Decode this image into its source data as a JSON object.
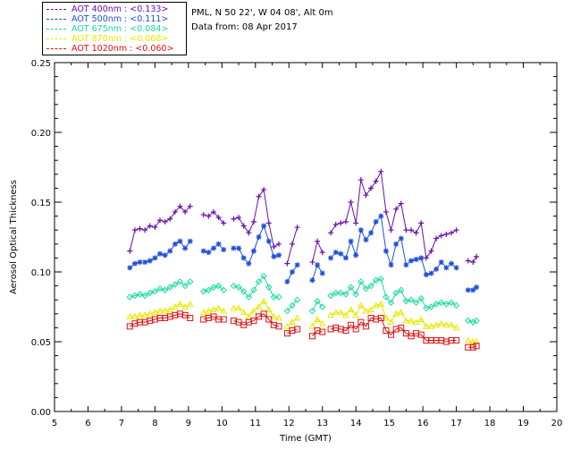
{
  "header": {
    "site_line": "PML, N 50 22', W 04 08', Alt 0m",
    "date_line": "Data from: 08 Apr 2017"
  },
  "legend": [
    {
      "label": "AOT  400nm : <0.133>",
      "color": "#6a0dad"
    },
    {
      "label": "AOT  500nm : <0.111>",
      "color": "#1f4fd8"
    },
    {
      "label": "AOT  675nm : <0.084>",
      "color": "#19d9a0"
    },
    {
      "label": "AOT  870nm : <0.068>",
      "color": "#e8e800"
    },
    {
      "label": "AOT 1020nm : <0.060>",
      "color": "#dd1111"
    }
  ],
  "chart_data": {
    "type": "scatter",
    "xlabel": "Time (GMT)",
    "ylabel": "Aerosol Optical Thickness",
    "xlim": [
      5,
      20
    ],
    "ylim": [
      0,
      0.25
    ],
    "xticks": [
      5,
      6,
      7,
      8,
      9,
      10,
      11,
      12,
      13,
      14,
      15,
      16,
      17,
      18,
      19,
      20
    ],
    "yticks": [
      "0.00",
      "0.05",
      "0.10",
      "0.15",
      "0.20",
      "0.25"
    ],
    "ytick_values": [
      0,
      0.05,
      0.1,
      0.15,
      0.2,
      0.25
    ],
    "grid": false,
    "x": [
      7.25,
      7.4,
      7.55,
      7.7,
      7.85,
      8.0,
      8.15,
      8.3,
      8.45,
      8.6,
      8.75,
      8.9,
      9.05,
      9.45,
      9.6,
      9.75,
      9.9,
      10.05,
      10.35,
      10.5,
      10.65,
      10.8,
      10.95,
      11.1,
      11.25,
      11.4,
      11.55,
      11.7,
      11.95,
      12.1,
      12.25,
      12.7,
      12.85,
      13.0,
      13.25,
      13.4,
      13.55,
      13.7,
      13.85,
      14.0,
      14.15,
      14.3,
      14.45,
      14.6,
      14.75,
      14.9,
      15.05,
      15.2,
      15.35,
      15.5,
      15.65,
      15.8,
      15.95,
      16.1,
      16.25,
      16.4,
      16.55,
      16.7,
      16.85,
      17.0,
      17.35,
      17.5,
      17.6
    ],
    "series": [
      {
        "name": "AOT  400nm : <0.133>",
        "marker": "plus",
        "values": [
          0.115,
          0.13,
          0.131,
          0.13,
          0.133,
          0.132,
          0.137,
          0.136,
          0.138,
          0.143,
          0.147,
          0.143,
          0.147,
          0.141,
          0.14,
          0.143,
          0.139,
          0.135,
          0.138,
          0.139,
          0.133,
          0.128,
          0.136,
          0.154,
          0.159,
          0.135,
          0.118,
          0.12,
          0.106,
          0.12,
          0.132,
          0.107,
          0.122,
          0.114,
          0.128,
          0.134,
          0.135,
          0.136,
          0.15,
          0.135,
          0.166,
          0.155,
          0.16,
          0.165,
          0.172,
          0.143,
          0.13,
          0.145,
          0.149,
          0.13,
          0.13,
          0.128,
          0.135,
          0.11,
          0.115,
          0.124,
          0.126,
          0.127,
          0.128,
          0.13,
          0.108,
          0.107,
          0.111
        ]
      },
      {
        "name": "AOT  500nm : <0.111>",
        "marker": "asterisk",
        "values": [
          0.103,
          0.106,
          0.107,
          0.107,
          0.108,
          0.11,
          0.113,
          0.112,
          0.115,
          0.12,
          0.122,
          0.117,
          0.122,
          0.115,
          0.114,
          0.117,
          0.12,
          0.116,
          0.117,
          0.117,
          0.11,
          0.106,
          0.115,
          0.125,
          0.133,
          0.122,
          0.111,
          0.112,
          0.093,
          0.1,
          0.105,
          0.094,
          0.105,
          0.099,
          0.11,
          0.114,
          0.113,
          0.11,
          0.122,
          0.112,
          0.13,
          0.123,
          0.128,
          0.136,
          0.14,
          0.115,
          0.105,
          0.12,
          0.124,
          0.105,
          0.108,
          0.109,
          0.11,
          0.098,
          0.099,
          0.102,
          0.107,
          0.103,
          0.106,
          0.103,
          0.087,
          0.087,
          0.089
        ]
      },
      {
        "name": "AOT  675nm : <0.084>",
        "marker": "diamond",
        "values": [
          0.082,
          0.083,
          0.084,
          0.083,
          0.085,
          0.086,
          0.088,
          0.087,
          0.089,
          0.091,
          0.093,
          0.09,
          0.093,
          0.086,
          0.087,
          0.089,
          0.09,
          0.087,
          0.09,
          0.089,
          0.086,
          0.082,
          0.087,
          0.093,
          0.097,
          0.089,
          0.082,
          0.082,
          0.072,
          0.076,
          0.08,
          0.072,
          0.079,
          0.075,
          0.083,
          0.085,
          0.085,
          0.084,
          0.089,
          0.084,
          0.093,
          0.088,
          0.09,
          0.094,
          0.095,
          0.082,
          0.078,
          0.085,
          0.087,
          0.079,
          0.08,
          0.078,
          0.081,
          0.074,
          0.075,
          0.077,
          0.078,
          0.077,
          0.078,
          0.076,
          0.065,
          0.064,
          0.065
        ]
      },
      {
        "name": "AOT  870nm : <0.068>",
        "marker": "triangle",
        "values": [
          0.068,
          0.068,
          0.069,
          0.069,
          0.07,
          0.071,
          0.072,
          0.072,
          0.073,
          0.075,
          0.077,
          0.075,
          0.077,
          0.071,
          0.072,
          0.073,
          0.074,
          0.072,
          0.074,
          0.074,
          0.071,
          0.068,
          0.072,
          0.075,
          0.079,
          0.073,
          0.068,
          0.067,
          0.061,
          0.064,
          0.067,
          0.061,
          0.066,
          0.063,
          0.069,
          0.071,
          0.071,
          0.069,
          0.073,
          0.069,
          0.076,
          0.072,
          0.073,
          0.076,
          0.077,
          0.067,
          0.064,
          0.07,
          0.071,
          0.065,
          0.065,
          0.064,
          0.066,
          0.061,
          0.061,
          0.062,
          0.063,
          0.062,
          0.062,
          0.06,
          0.051,
          0.05,
          0.05
        ]
      },
      {
        "name": "AOT 1020nm : <0.060>",
        "marker": "square",
        "values": [
          0.061,
          0.063,
          0.064,
          0.064,
          0.065,
          0.066,
          0.067,
          0.067,
          0.068,
          0.069,
          0.07,
          0.069,
          0.067,
          0.066,
          0.067,
          0.068,
          0.066,
          0.066,
          0.065,
          0.064,
          0.062,
          0.064,
          0.065,
          0.068,
          0.07,
          0.066,
          0.062,
          0.061,
          0.056,
          0.058,
          0.059,
          0.054,
          0.058,
          0.057,
          0.059,
          0.06,
          0.059,
          0.058,
          0.062,
          0.059,
          0.064,
          0.061,
          0.067,
          0.066,
          0.067,
          0.058,
          0.055,
          0.059,
          0.06,
          0.056,
          0.054,
          0.056,
          0.055,
          0.051,
          0.051,
          0.051,
          0.051,
          0.05,
          0.051,
          0.051,
          0.046,
          0.046,
          0.047
        ]
      }
    ]
  }
}
